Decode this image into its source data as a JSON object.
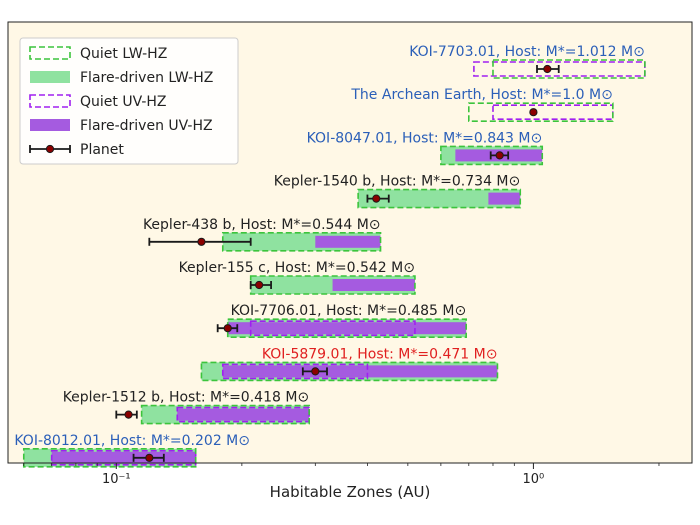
{
  "chart_data": {
    "type": "range-bar",
    "title": "",
    "xlabel": "Habitable Zones (AU)",
    "ylabel": "",
    "xscale": "log",
    "xlim": [
      0.055,
      2.4
    ],
    "x_ticks": [
      {
        "value": 0.1,
        "label": "10⁻¹"
      },
      {
        "value": 1.0,
        "label": "10⁰"
      }
    ],
    "grid": false,
    "legend_position": "top-left",
    "colors": {
      "background": "#fff8e6",
      "quiet_lw": "#3cc43c",
      "flare_lw": "#8fe2a0",
      "quiet_uv": "#a020f0",
      "flare_uv": "#a55be0",
      "planet": "#1a1a1a",
      "planet_marker": "#8b0000",
      "label_blue": "#2b5fb8",
      "label_black": "#222222",
      "label_red": "#e02020"
    },
    "legend": [
      {
        "key": "quiet_lw",
        "label": "Quiet LW-HZ"
      },
      {
        "key": "flare_lw",
        "label": "Flare-driven LW-HZ"
      },
      {
        "key": "quiet_uv",
        "label": "Quiet UV-HZ"
      },
      {
        "key": "flare_uv",
        "label": "Flare-driven UV-HZ"
      },
      {
        "key": "planet",
        "label": "Planet"
      }
    ],
    "systems": [
      {
        "label": "KOI-7703.01, Host: M*=1.012 M⊙",
        "color": "label_blue",
        "quiet_lw": [
          0.8,
          1.85
        ],
        "flare_lw": null,
        "quiet_uv": [
          0.72,
          1.85
        ],
        "flare_uv": null,
        "planet": 1.08,
        "planet_err": [
          1.02,
          1.15
        ]
      },
      {
        "label": "The Archean Earth, Host: M*=1.0 M⊙",
        "color": "label_blue",
        "quiet_lw": [
          0.7,
          1.55
        ],
        "flare_lw": null,
        "quiet_uv": [
          0.8,
          1.55
        ],
        "flare_uv": null,
        "planet": 1.0,
        "planet_err": null
      },
      {
        "label": "KOI-8047.01, Host: M*=0.843 M⊙",
        "color": "label_blue",
        "quiet_lw": [
          0.6,
          1.05
        ],
        "flare_lw": [
          0.6,
          1.05
        ],
        "quiet_uv": null,
        "flare_uv": [
          0.65,
          1.05
        ],
        "planet": 0.83,
        "planet_err": [
          0.79,
          0.87
        ]
      },
      {
        "label": "Kepler-1540 b, Host: M*=0.734 M⊙",
        "color": "label_black",
        "quiet_lw": [
          0.38,
          0.93
        ],
        "flare_lw": [
          0.38,
          0.93
        ],
        "quiet_uv": null,
        "flare_uv": [
          0.78,
          0.93
        ],
        "planet": 0.42,
        "planet_err": [
          0.4,
          0.45
        ]
      },
      {
        "label": "Kepler-438 b, Host: M*=0.544 M⊙",
        "color": "label_black",
        "quiet_lw": [
          0.18,
          0.43
        ],
        "flare_lw": [
          0.18,
          0.43
        ],
        "quiet_uv": null,
        "flare_uv": [
          0.3,
          0.43
        ],
        "planet": 0.16,
        "planet_err": [
          0.12,
          0.21
        ]
      },
      {
        "label": "Kepler-155 c, Host: M*=0.542 M⊙",
        "color": "label_black",
        "quiet_lw": [
          0.21,
          0.52
        ],
        "flare_lw": [
          0.21,
          0.52
        ],
        "quiet_uv": null,
        "flare_uv": [
          0.33,
          0.52
        ],
        "planet": 0.22,
        "planet_err": [
          0.21,
          0.235
        ]
      },
      {
        "label": "KOI-7706.01, Host: M*=0.485 M⊙",
        "color": "label_black",
        "quiet_lw": [
          0.185,
          0.69
        ],
        "flare_lw": [
          0.185,
          0.69
        ],
        "quiet_uv": [
          0.21,
          0.52
        ],
        "flare_uv": [
          0.185,
          0.69
        ],
        "planet": 0.185,
        "planet_err": [
          0.175,
          0.195
        ]
      },
      {
        "label": "KOI-5879.01, Host: M*=0.471 M⊙",
        "color": "label_red",
        "quiet_lw": [
          0.16,
          0.82
        ],
        "flare_lw": [
          0.16,
          0.82
        ],
        "quiet_uv": [
          0.18,
          0.4
        ],
        "flare_uv": [
          0.18,
          0.82
        ],
        "planet": 0.3,
        "planet_err": [
          0.28,
          0.32
        ]
      },
      {
        "label": "Kepler-1512 b, Host: M*=0.418 M⊙",
        "color": "label_black",
        "quiet_lw": [
          0.115,
          0.29
        ],
        "flare_lw": [
          0.115,
          0.29
        ],
        "quiet_uv": [
          0.14,
          0.29
        ],
        "flare_uv": [
          0.14,
          0.29
        ],
        "planet": 0.107,
        "planet_err": [
          0.1,
          0.112
        ]
      },
      {
        "label": "KOI-8012.01, Host: M*=0.202 M⊙",
        "color": "label_blue",
        "quiet_lw": [
          0.06,
          0.155
        ],
        "flare_lw": [
          0.06,
          0.155
        ],
        "quiet_uv": [
          0.07,
          0.155
        ],
        "flare_uv": [
          0.07,
          0.155
        ],
        "planet": 0.12,
        "planet_err": [
          0.11,
          0.13
        ]
      }
    ]
  }
}
